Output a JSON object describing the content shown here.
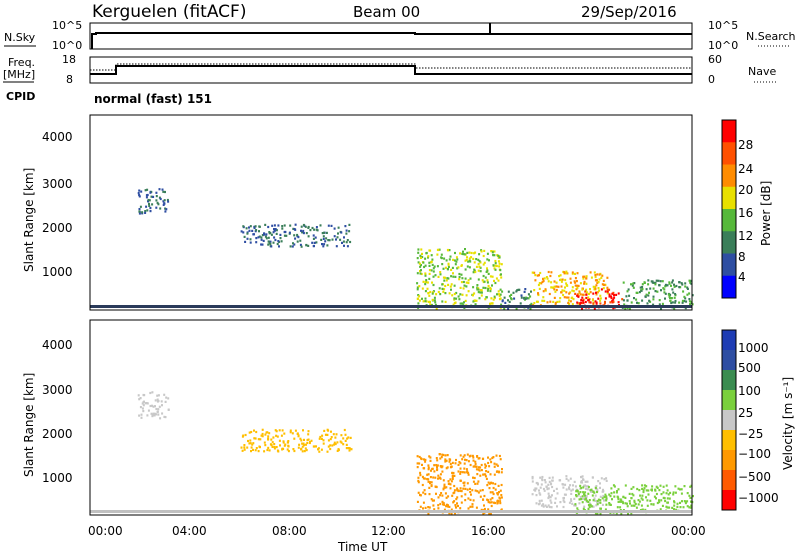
{
  "header": {
    "station": "Kerguelen (fitACF)",
    "beam": "Beam 00",
    "date": "29/Sep/2016"
  },
  "top_panels": {
    "nsky_label": "N.Sky",
    "nsky_ticks": [
      "10^5",
      "10^0"
    ],
    "nsearch_label": "N.Search",
    "nsearch_ticks": [
      "10^5",
      "10^0"
    ],
    "freq_label_1": "Freq.",
    "freq_label_2": "[MHz]",
    "freq_ticks": [
      "18",
      "8"
    ],
    "nave_label": "Nave",
    "nave_ticks": [
      "60",
      "0"
    ],
    "cpid_label": "CPID",
    "cpid_value": "normal (fast) 151"
  },
  "colors": {
    "power": [
      "#0000ff",
      "#2e4ea2",
      "#3a7e59",
      "#56b83a",
      "#e8e000",
      "#ff8c00",
      "#ff5000",
      "#ff0000"
    ],
    "velocity": [
      "#ff0000",
      "#ff5a00",
      "#ff9900",
      "#ffbf00",
      "#c8c8c8",
      "#7ad03c",
      "#3a8c50",
      "#2e4ea2",
      "#1e3cb4"
    ],
    "ground": "#c0c0c0"
  },
  "chart_data": [
    {
      "type": "heatmap",
      "name": "power",
      "ylabel": "Slant Range [km]",
      "yticks": [
        "4000",
        "3000",
        "2000",
        "1000"
      ],
      "ylim": [
        200,
        4600
      ],
      "xlim_hours": [
        0,
        24
      ],
      "colorbar_label": "Power [dB]",
      "colorbar_ticks": [
        "28",
        "24",
        "20",
        "16",
        "12",
        "8",
        "4"
      ],
      "clim": [
        0,
        32
      ],
      "segments": [
        {
          "t": [
            1.9,
            3.1
          ],
          "r": [
            2400,
            3000
          ],
          "val": 8
        },
        {
          "t": [
            6.0,
            10.4
          ],
          "r": [
            1650,
            2150
          ],
          "val": 8
        },
        {
          "t": [
            13.0,
            16.4
          ],
          "r": [
            250,
            1600
          ],
          "val": 16
        },
        {
          "t": [
            16.4,
            17.6
          ],
          "r": [
            250,
            700
          ],
          "val": 10
        },
        {
          "t": [
            17.6,
            20.6
          ],
          "r": [
            300,
            1100
          ],
          "val": 20
        },
        {
          "t": [
            19.3,
            21.2
          ],
          "r": [
            250,
            700
          ],
          "val": 30
        },
        {
          "t": [
            21.2,
            24.0
          ],
          "r": [
            250,
            900
          ],
          "val": 12
        }
      ]
    },
    {
      "type": "heatmap",
      "name": "velocity",
      "ylabel": "Slant Range [km]",
      "yticks": [
        "4000",
        "3000",
        "2000",
        "1000"
      ],
      "ylim": [
        200,
        4600
      ],
      "xlim_hours": [
        0,
        24
      ],
      "xticks": [
        "00:00",
        "04:00",
        "08:00",
        "12:00",
        "16:00",
        "20:00",
        "00:00"
      ],
      "xlabel": "Time UT",
      "colorbar_label": "Velocity [m s⁻¹]",
      "colorbar_ticks": [
        "1000",
        "500",
        "100",
        "25",
        "−25",
        "−100",
        "−500",
        "−1000"
      ],
      "segments": [
        {
          "t": [
            1.9,
            3.1
          ],
          "r": [
            2400,
            3000
          ],
          "val": 0
        },
        {
          "t": [
            6.0,
            10.4
          ],
          "r": [
            1650,
            2150
          ],
          "val": -50
        },
        {
          "t": [
            13.0,
            16.4
          ],
          "r": [
            250,
            1600
          ],
          "val": -200
        },
        {
          "t": [
            17.6,
            20.6
          ],
          "r": [
            400,
            1100
          ],
          "val": 0
        },
        {
          "t": [
            19.3,
            24.0
          ],
          "r": [
            250,
            900
          ],
          "val": 50
        }
      ]
    }
  ]
}
